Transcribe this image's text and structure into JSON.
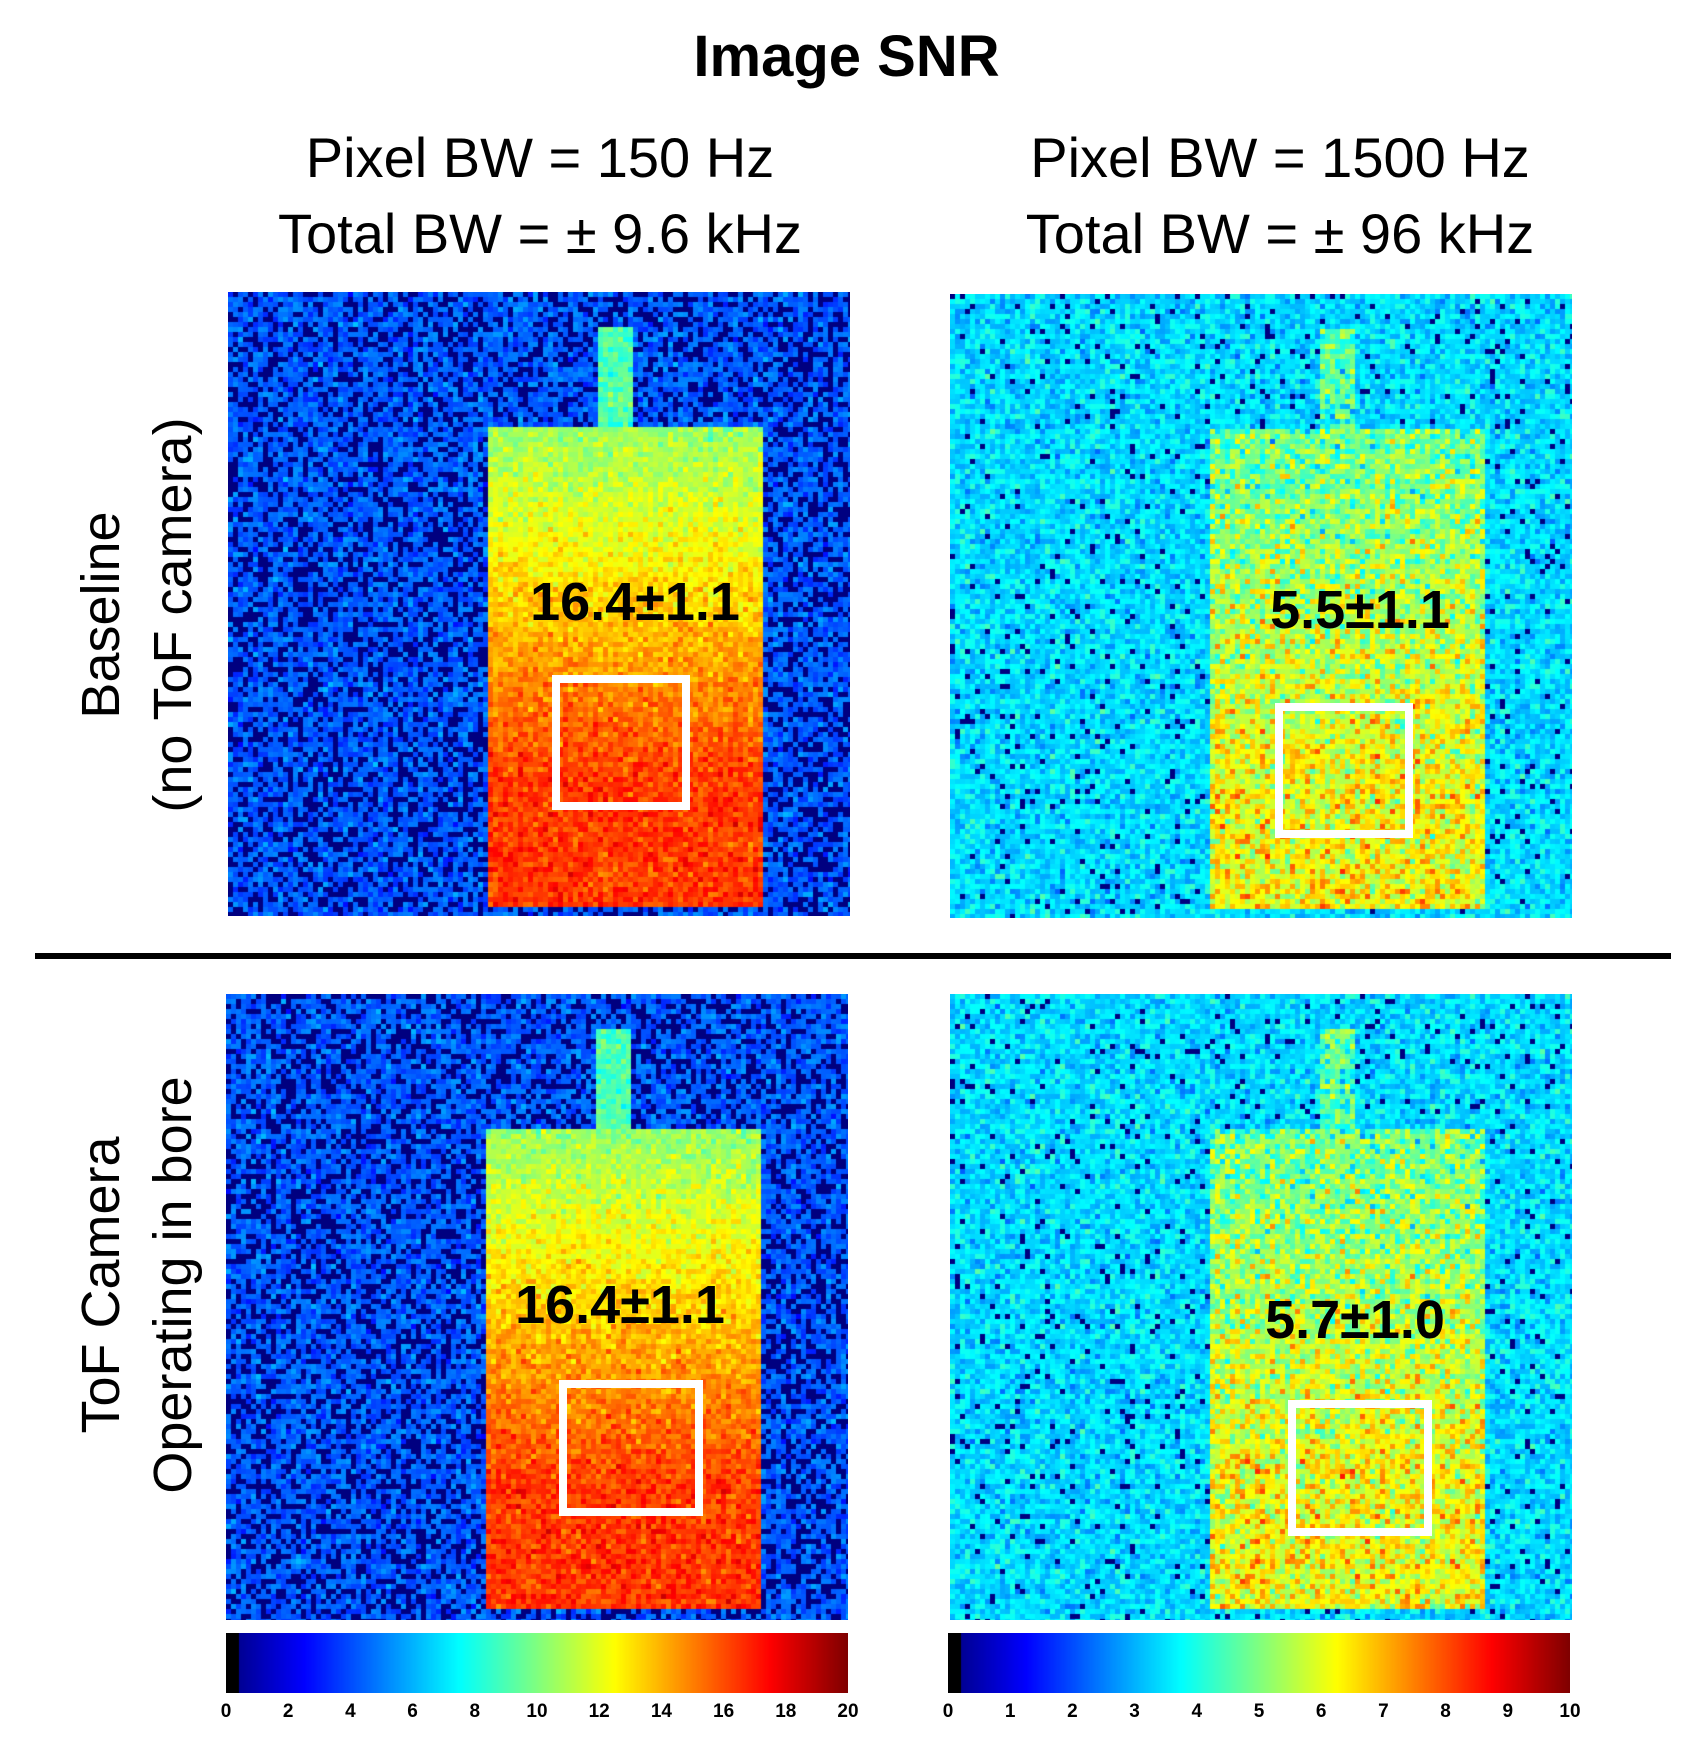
{
  "title": "Image SNR",
  "columns": [
    {
      "line1": "Pixel BW = 150 Hz",
      "line2": "Total BW = ± 9.6 kHz"
    },
    {
      "line1": "Pixel BW = 1500 Hz",
      "line2": "Total BW = ± 96 kHz"
    }
  ],
  "rows": [
    {
      "line1": "Baseline",
      "line2": "(no ToF camera)"
    },
    {
      "line1": "ToF Camera",
      "line2": "Operating in bore"
    }
  ],
  "panels": [
    {
      "snr": "16.4±1.1",
      "colormap_max": 20
    },
    {
      "snr": "5.5±1.1",
      "colormap_max": 10
    },
    {
      "snr": "16.4±1.1",
      "colormap_max": 20
    },
    {
      "snr": "5.7±1.0",
      "colormap_max": 10
    }
  ],
  "colorbars": [
    {
      "ticks": [
        "0",
        "2",
        "4",
        "6",
        "8",
        "10",
        "12",
        "14",
        "16",
        "18",
        "20"
      ]
    },
    {
      "ticks": [
        "0",
        "1",
        "2",
        "3",
        "4",
        "5",
        "6",
        "7",
        "8",
        "9",
        "10"
      ]
    }
  ],
  "colormap": "jet"
}
